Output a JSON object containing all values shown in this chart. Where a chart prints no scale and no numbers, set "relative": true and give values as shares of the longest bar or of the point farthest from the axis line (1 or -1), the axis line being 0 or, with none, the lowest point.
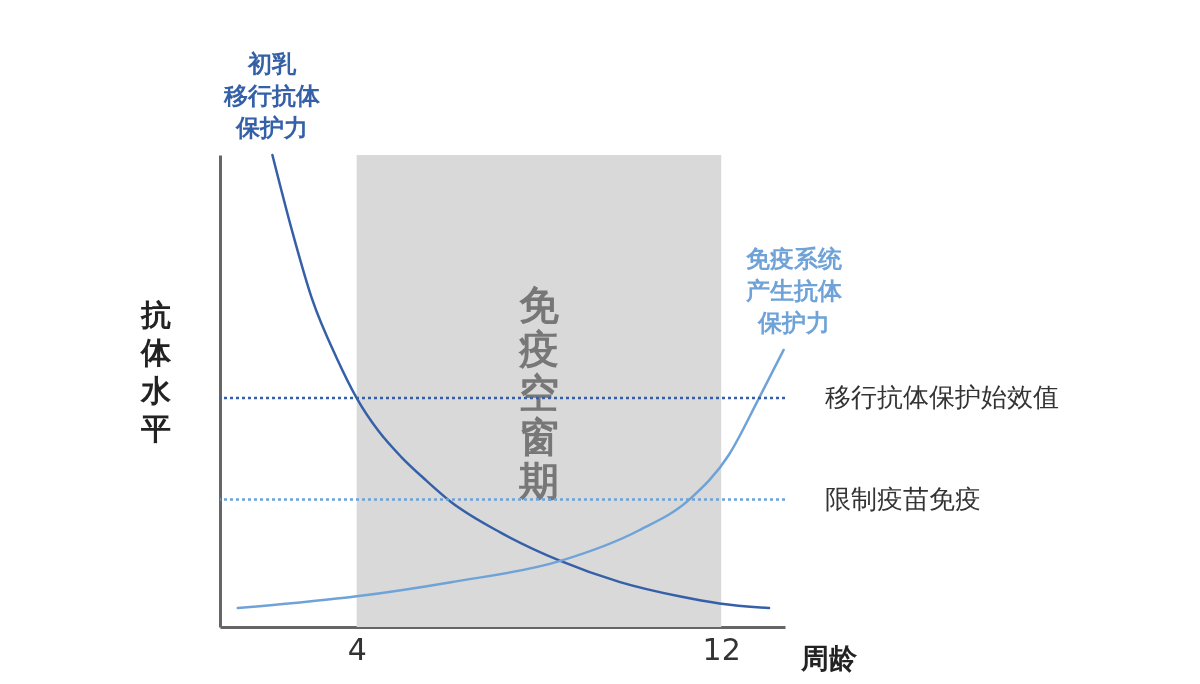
{
  "chart_data": {
    "type": "line",
    "xlabel": "周龄",
    "ylabel": "抗体水平",
    "relative": true,
    "xlim": [
      1,
      13.4
    ],
    "xticks": [
      4,
      12
    ],
    "tick_labels": "x",
    "grid": false,
    "legend": false,
    "line_style": "solid",
    "marker": "none",
    "series": [
      {
        "name": "初乳移行抗体保护力",
        "color": "#3560a8",
        "x": [
          2.15,
          2.58,
          3.02,
          3.56,
          4,
          4.48,
          4.98,
          5.53,
          6.07,
          7.16,
          8.47,
          9.78,
          11.08,
          11.96,
          13.05
        ],
        "values": [
          1,
          0.84,
          0.695,
          0.57,
          0.485,
          0.415,
          0.36,
          0.31,
          0.265,
          0.2,
          0.14,
          0.095,
          0.065,
          0.05,
          0.04
        ]
      },
      {
        "name": "免疫系统产生抗体保护力",
        "color": "#6fa3d8",
        "x": [
          1.39,
          4,
          6.07,
          8.47,
          10.2,
          11.3,
          12.17,
          12.83,
          13.37
        ],
        "values": [
          0.04,
          0.065,
          0.095,
          0.14,
          0.205,
          0.27,
          0.365,
          0.485,
          0.587
        ]
      }
    ],
    "ref_lines": [
      {
        "axis": "y",
        "value": 0.485,
        "label": "移行抗体保护始效值",
        "color": "#3560a8",
        "line_style": "dotted"
      },
      {
        "axis": "y",
        "value": 0.27,
        "label": "限制疫苗免疫",
        "color": "#6fa3d8",
        "line_style": "dotted"
      }
    ],
    "bands": [
      {
        "axis": "x",
        "from": 4,
        "to": 12,
        "label": "免疫空窗期",
        "color": "#d9d9d9"
      }
    ]
  }
}
